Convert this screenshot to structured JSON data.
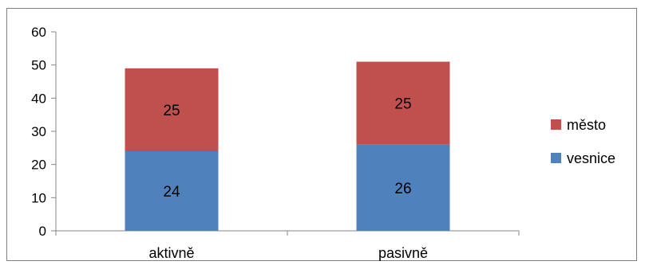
{
  "chart_data": {
    "type": "bar",
    "stacked": true,
    "categories": [
      "aktivně",
      "pasivně"
    ],
    "series": [
      {
        "name": "vesnice",
        "values": [
          24,
          26
        ],
        "color": "#4f81bd"
      },
      {
        "name": "město",
        "values": [
          25,
          25
        ],
        "color": "#c0504d"
      }
    ],
    "ylim": [
      0,
      60
    ],
    "yticks": [
      0,
      10,
      20,
      30,
      40,
      50,
      60
    ],
    "grid": false,
    "legend": "right",
    "data_labels": true
  }
}
